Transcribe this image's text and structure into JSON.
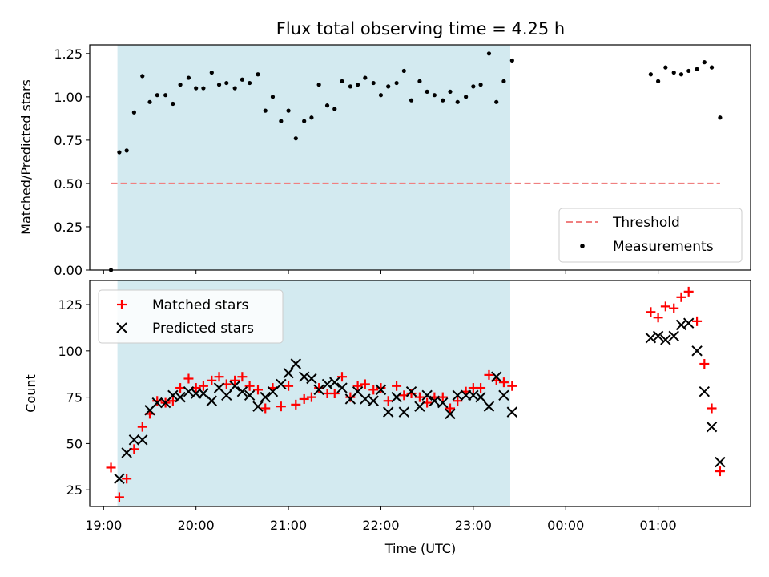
{
  "chart_data": {
    "title": "Flux total observing time = 4.25 h",
    "xlabel": "Time (UTC)",
    "x_ticks": [
      "19:00",
      "20:00",
      "21:00",
      "22:00",
      "23:00",
      "00:00",
      "01:00"
    ],
    "x_range_hours": [
      18.85,
      26.0
    ],
    "shaded_window": {
      "start_hours": 19.15,
      "end_hours": 23.4,
      "color": "#d3eaf0"
    },
    "top_panel": {
      "type": "scatter",
      "ylabel": "Matched/Predicted stars",
      "ylim": [
        0,
        1.3
      ],
      "y_ticks": [
        "0.00",
        "0.25",
        "0.50",
        "0.75",
        "1.00",
        "1.25"
      ],
      "threshold": {
        "name": "Threshold",
        "value": 0.5,
        "x_start": 19.08,
        "x_end": 25.67,
        "color": "#f08080"
      },
      "series": [
        {
          "name": "Measurements",
          "color": "#000000",
          "x": [
            19.08,
            19.17,
            19.25,
            19.33,
            19.42,
            19.5,
            19.58,
            19.67,
            19.75,
            19.83,
            19.92,
            20.0,
            20.08,
            20.17,
            20.25,
            20.33,
            20.42,
            20.5,
            20.58,
            20.67,
            20.75,
            20.83,
            20.92,
            21.0,
            21.08,
            21.17,
            21.25,
            21.33,
            21.42,
            21.5,
            21.58,
            21.67,
            21.75,
            21.83,
            21.92,
            22.0,
            22.08,
            22.17,
            22.25,
            22.33,
            22.42,
            22.5,
            22.58,
            22.67,
            22.75,
            22.83,
            22.92,
            23.0,
            23.08,
            23.17,
            23.25,
            23.33,
            23.42,
            24.92,
            25.0,
            25.08,
            25.17,
            25.25,
            25.33,
            25.42,
            25.5,
            25.58,
            25.67
          ],
          "y": [
            0.0,
            0.68,
            0.69,
            0.91,
            1.12,
            0.97,
            1.01,
            1.01,
            0.96,
            1.07,
            1.11,
            1.05,
            1.05,
            1.14,
            1.07,
            1.08,
            1.05,
            1.1,
            1.08,
            1.13,
            0.92,
            1.0,
            0.86,
            0.92,
            0.76,
            0.86,
            0.88,
            1.07,
            0.95,
            0.93,
            1.09,
            1.06,
            1.07,
            1.11,
            1.08,
            1.01,
            1.06,
            1.08,
            1.15,
            0.98,
            1.09,
            1.03,
            1.01,
            0.98,
            1.03,
            0.97,
            1.0,
            1.06,
            1.07,
            1.25,
            0.97,
            1.09,
            1.21,
            1.13,
            1.09,
            1.17,
            1.14,
            1.13,
            1.15,
            1.16,
            1.2,
            1.17,
            0.88
          ]
        }
      ],
      "legend": {
        "placement": "lower-right",
        "entries": [
          "Threshold",
          "Measurements"
        ]
      }
    },
    "bottom_panel": {
      "type": "scatter",
      "ylabel": "Count",
      "ylim": [
        16,
        138
      ],
      "y_ticks": [
        "25",
        "50",
        "75",
        "100",
        "125"
      ],
      "series": [
        {
          "name": "Matched stars",
          "marker": "plus",
          "color": "#ff0000",
          "x": [
            19.08,
            19.17,
            19.25,
            19.33,
            19.42,
            19.5,
            19.58,
            19.67,
            19.75,
            19.83,
            19.92,
            20.0,
            20.08,
            20.17,
            20.25,
            20.33,
            20.42,
            20.5,
            20.58,
            20.67,
            20.75,
            20.83,
            20.92,
            21.0,
            21.08,
            21.17,
            21.25,
            21.33,
            21.42,
            21.5,
            21.58,
            21.67,
            21.75,
            21.83,
            21.92,
            22.0,
            22.08,
            22.17,
            22.25,
            22.33,
            22.42,
            22.5,
            22.58,
            22.67,
            22.75,
            22.83,
            22.92,
            23.0,
            23.08,
            23.17,
            23.25,
            23.33,
            23.42,
            24.92,
            25.0,
            25.08,
            25.17,
            25.25,
            25.33,
            25.42,
            25.5,
            25.58,
            25.67
          ],
          "y": [
            37,
            21,
            31,
            47,
            59,
            66,
            73,
            72,
            73,
            80,
            85,
            80,
            81,
            84,
            86,
            82,
            84,
            86,
            81,
            79,
            69,
            80,
            70,
            81,
            71,
            74,
            75,
            80,
            77,
            77,
            86,
            75,
            81,
            82,
            79,
            80,
            73,
            81,
            76,
            77,
            75,
            72,
            75,
            75,
            69,
            73,
            78,
            80,
            80,
            87,
            84,
            83,
            81,
            121,
            118,
            124,
            123,
            129,
            132,
            116,
            93,
            69,
            35
          ]
        },
        {
          "name": "Predicted stars",
          "marker": "x",
          "color": "#000000",
          "x": [
            19.17,
            19.25,
            19.33,
            19.42,
            19.5,
            19.58,
            19.67,
            19.75,
            19.83,
            19.92,
            20.0,
            20.08,
            20.17,
            20.25,
            20.33,
            20.42,
            20.5,
            20.58,
            20.67,
            20.75,
            20.83,
            20.92,
            21.0,
            21.08,
            21.17,
            21.25,
            21.33,
            21.42,
            21.5,
            21.58,
            21.67,
            21.75,
            21.83,
            21.92,
            22.0,
            22.08,
            22.17,
            22.25,
            22.33,
            22.42,
            22.5,
            22.58,
            22.67,
            22.75,
            22.83,
            22.92,
            23.0,
            23.08,
            23.17,
            23.25,
            23.33,
            23.42,
            24.92,
            25.0,
            25.08,
            25.17,
            25.25,
            25.33,
            25.42,
            25.5,
            25.58,
            25.67
          ],
          "y": [
            31,
            45,
            52,
            52,
            68,
            72,
            72,
            76,
            75,
            78,
            77,
            77,
            73,
            80,
            76,
            81,
            78,
            76,
            70,
            75,
            78,
            82,
            88,
            93,
            86,
            85,
            79,
            82,
            83,
            80,
            74,
            78,
            74,
            73,
            79,
            67,
            75,
            67,
            78,
            70,
            76,
            73,
            72,
            66,
            76,
            76,
            76,
            75,
            70,
            86,
            76,
            67,
            107,
            108,
            106,
            108,
            114,
            115,
            100,
            78,
            59,
            40
          ]
        }
      ],
      "legend": {
        "placement": "upper-left",
        "entries": [
          "Matched stars",
          "Predicted stars"
        ]
      }
    }
  }
}
